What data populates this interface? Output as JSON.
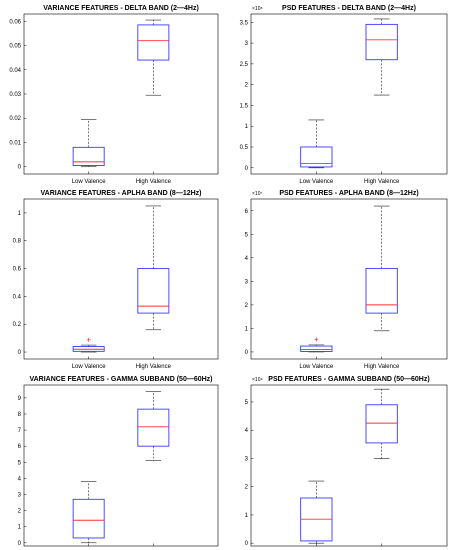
{
  "chart_data": [
    {
      "type": "box",
      "title": "VARIANCE FEATURES - DELTA BAND (2—4Hz)",
      "exponent": "",
      "categories": [
        "Low Valence",
        "High Valence"
      ],
      "yticks": [
        "0",
        "0.01",
        "0.02",
        "0.03",
        "0.04",
        "0.05",
        "0.06"
      ],
      "ylim": [
        -0.003,
        0.063
      ],
      "boxes": [
        {
          "min": 0,
          "q1": 0.0005,
          "median": 0.002,
          "q3": 0.008,
          "max": 0.0195,
          "outliers": []
        },
        {
          "min": 0.0295,
          "q1": 0.044,
          "median": 0.052,
          "q3": 0.0585,
          "max": 0.0605,
          "outliers": []
        }
      ]
    },
    {
      "type": "box",
      "title": "PSD FEATURES - DELTA BAND (2—4Hz)",
      "exponent": "×10⁸",
      "categories": [
        "Low Valence",
        "High Valence"
      ],
      "yticks": [
        "0",
        "0.5",
        "1",
        "1.5",
        "2",
        "2.5",
        "3",
        "3.5"
      ],
      "ylim": [
        -0.15,
        3.7
      ],
      "boxes": [
        {
          "min": 0,
          "q1": 0.02,
          "median": 0.1,
          "q3": 0.5,
          "max": 1.15,
          "outliers": []
        },
        {
          "min": 1.75,
          "q1": 2.6,
          "median": 3.08,
          "q3": 3.45,
          "max": 3.58,
          "outliers": []
        }
      ]
    },
    {
      "type": "box",
      "title": "VARIANCE FEATURES - APLHA BAND (8—12Hz)",
      "exponent": "",
      "categories": [
        "Low Valence",
        "High Valence"
      ],
      "yticks": [
        "0",
        "0.2",
        "0.4",
        "0.6",
        "0.8",
        "1"
      ],
      "ylim": [
        -0.05,
        1.1
      ],
      "boxes": [
        {
          "min": 0,
          "q1": 0.005,
          "median": 0.02,
          "q3": 0.04,
          "max": 0.05,
          "outliers": [
            0.09
          ]
        },
        {
          "min": 0.16,
          "q1": 0.28,
          "median": 0.33,
          "q3": 0.6,
          "max": 1.05,
          "outliers": []
        }
      ]
    },
    {
      "type": "box",
      "title": "PSD FEATURES - APLHA BAND (8—12Hz)",
      "exponent": "×10⁷",
      "categories": [
        "Low Valence",
        "High Valence"
      ],
      "yticks": [
        "0",
        "1",
        "2",
        "3",
        "4",
        "5",
        "6"
      ],
      "ylim": [
        -0.3,
        6.5
      ],
      "boxes": [
        {
          "min": 0,
          "q1": 0.02,
          "median": 0.1,
          "q3": 0.25,
          "max": 0.3,
          "outliers": [
            0.55
          ]
        },
        {
          "min": 0.9,
          "q1": 1.65,
          "median": 2.0,
          "q3": 3.55,
          "max": 6.2,
          "outliers": []
        }
      ]
    },
    {
      "type": "box",
      "title": "VARIANCE FEATURES - GAMMA SUBBAND (50—60Hz)",
      "exponent": "",
      "categories": [
        "Low Valence",
        "High Valence"
      ],
      "yticks": [
        "0",
        "1",
        "2",
        "3",
        "4",
        "5",
        "6",
        "7",
        "8",
        "9"
      ],
      "ylim": [
        -0.2,
        9.8
      ],
      "boxes": [
        {
          "min": 0,
          "q1": 0.3,
          "median": 1.4,
          "q3": 2.7,
          "max": 3.8,
          "outliers": []
        },
        {
          "min": 5.1,
          "q1": 6.0,
          "median": 7.2,
          "q3": 8.3,
          "max": 9.4,
          "outliers": []
        }
      ]
    },
    {
      "type": "box",
      "title": "PSD FEATURES - GAMMA SUBBAND (50—60Hz)",
      "exponent": "×10⁹",
      "categories": [
        "Low Valence",
        "High Valence"
      ],
      "yticks": [
        "0",
        "1",
        "2",
        "3",
        "4",
        "5"
      ],
      "ylim": [
        -0.1,
        5.6
      ],
      "boxes": [
        {
          "min": 0,
          "q1": 0.08,
          "median": 0.85,
          "q3": 1.6,
          "max": 2.2,
          "outliers": []
        },
        {
          "min": 3.0,
          "q1": 3.55,
          "median": 4.25,
          "q3": 4.9,
          "max": 5.45,
          "outliers": []
        }
      ]
    }
  ]
}
